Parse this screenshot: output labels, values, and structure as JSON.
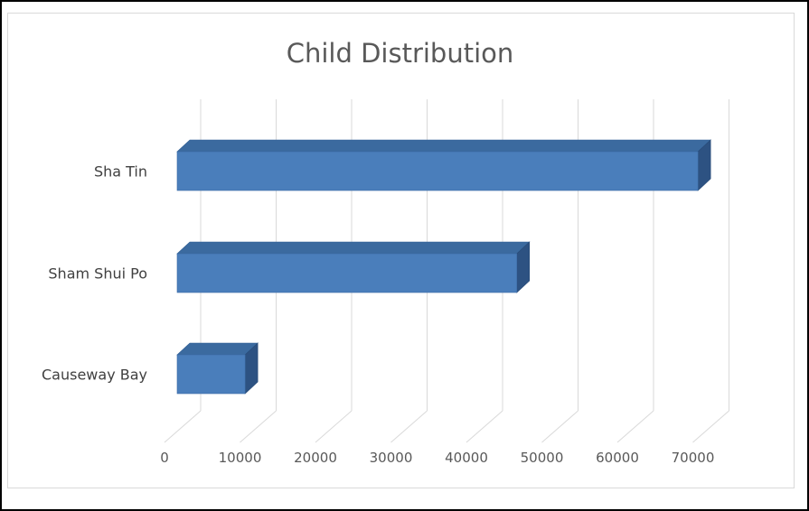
{
  "chart_data": {
    "type": "bar",
    "orientation": "horizontal",
    "style": "3d",
    "title": "Child Distribution",
    "xlabel": "",
    "ylabel": "",
    "categories": [
      "Causeway Bay",
      "Sham Shui Po",
      "Sha Tin"
    ],
    "values": [
      9000,
      45000,
      69000
    ],
    "xlim": [
      0,
      70000
    ],
    "xticks": [
      "0",
      "10000",
      "20000",
      "30000",
      "40000",
      "50000",
      "60000",
      "70000"
    ],
    "grid": true,
    "legend": "none",
    "colors": {
      "bar_front": "#4a7ebb",
      "bar_top": "#3b6a9f",
      "bar_side": "#2d5282",
      "grid": "#d9d9d9",
      "text": "#595959"
    }
  }
}
